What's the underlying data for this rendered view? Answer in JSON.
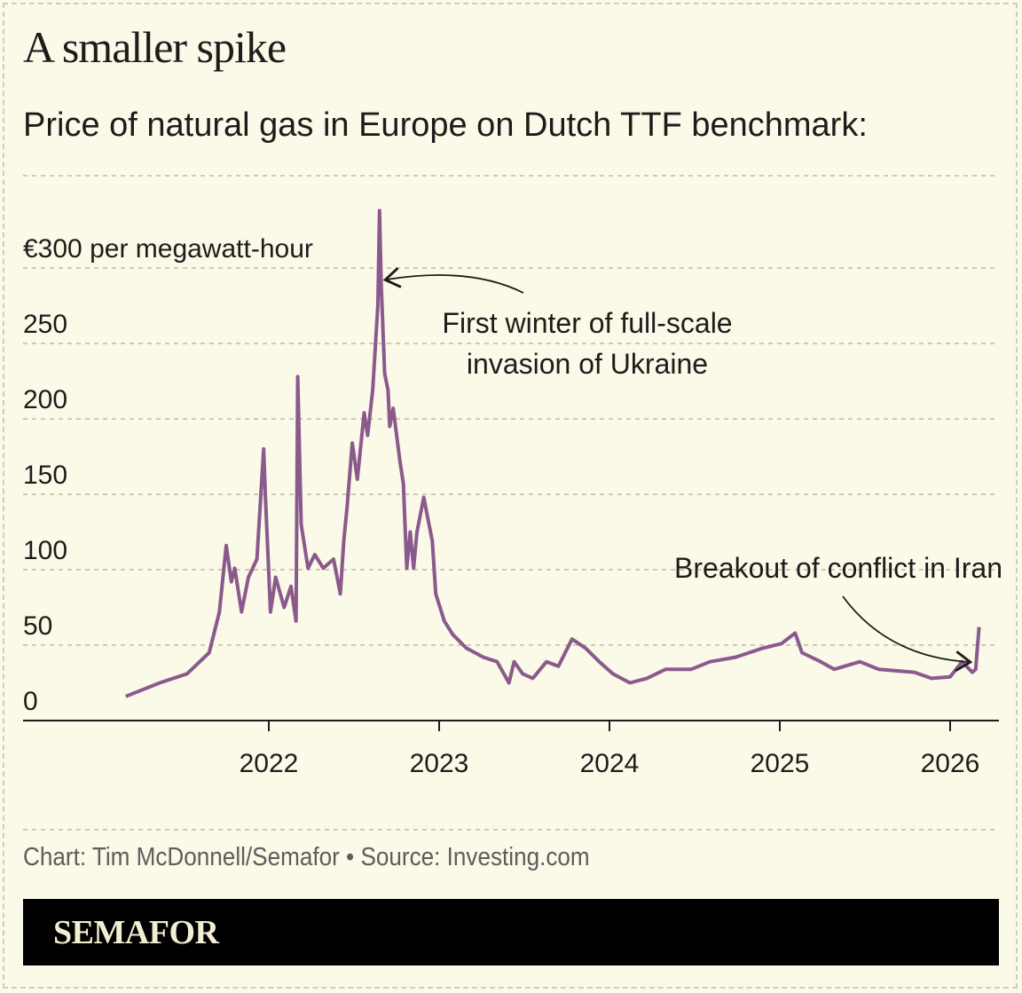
{
  "title": "A smaller spike",
  "subtitle": "Price of natural gas in Europe on Dutch TTF benchmark:",
  "credit": "Chart: Tim McDonnell/Semafor • Source: Investing.com",
  "brand": "SEMAFOR",
  "colors": {
    "line": "#8a5a8c",
    "background": "#fbf9e7",
    "grid": "#bdbbaa",
    "brandbar": "#000000"
  },
  "chart_data": {
    "type": "line",
    "ylabel_inline": "€300 per megawatt-hour",
    "ylim": [
      0,
      360
    ],
    "xlim": [
      2021.0,
      2026.3
    ],
    "grid": true,
    "y_ticks": [
      0,
      50,
      100,
      150,
      200,
      250,
      300
    ],
    "y_tick_labels": [
      "0",
      "50",
      "100",
      "150",
      "200",
      "250",
      "€300 per megawatt-hour"
    ],
    "x_ticks": [
      2022,
      2023,
      2024,
      2025,
      2026
    ],
    "x_tick_labels": [
      "2022",
      "2023",
      "2024",
      "2025",
      "2026"
    ],
    "annotations": [
      {
        "text_lines": [
          "First winter of full-scale",
          "invasion of Ukraine"
        ],
        "x": 2022.65,
        "y": 290
      },
      {
        "text_lines": [
          "Breakout of conflict in Iran"
        ],
        "x": 2026.14,
        "y": 38
      }
    ],
    "series": [
      {
        "x": [
          2021.16,
          2021.36,
          2021.52,
          2021.65,
          2021.71,
          2021.75,
          2021.78,
          2021.8,
          2021.84,
          2021.88,
          2021.93,
          2021.97,
          2021.98,
          2022.01,
          2022.04,
          2022.09,
          2022.13,
          2022.16,
          2022.17,
          2022.19,
          2022.23,
          2022.27,
          2022.32,
          2022.38,
          2022.42,
          2022.44,
          2022.46,
          2022.49,
          2022.52,
          2022.56,
          2022.58,
          2022.61,
          2022.64,
          2022.65,
          2022.66,
          2022.68,
          2022.7,
          2022.71,
          2022.73,
          2022.77,
          2022.79,
          2022.81,
          2022.83,
          2022.85,
          2022.87,
          2022.91,
          2022.93,
          2022.96,
          2022.98,
          2023.03,
          2023.08,
          2023.16,
          2023.26,
          2023.34,
          2023.41,
          2023.44,
          2023.49,
          2023.55,
          2023.63,
          2023.7,
          2023.78,
          2023.86,
          2023.94,
          2024.02,
          2024.12,
          2024.22,
          2024.33,
          2024.48,
          2024.59,
          2024.74,
          2024.9,
          2025.01,
          2025.09,
          2025.13,
          2025.24,
          2025.32,
          2025.47,
          2025.58,
          2025.79,
          2025.89,
          2026.0,
          2026.07,
          2026.13,
          2026.15,
          2026.17
        ],
        "values": [
          16,
          25,
          31,
          45,
          72,
          116,
          92,
          101,
          72,
          95,
          107,
          180,
          148,
          72,
          95,
          75,
          89,
          66,
          228,
          130,
          101,
          110,
          101,
          107,
          84,
          119,
          142,
          184,
          160,
          204,
          189,
          219,
          275,
          338,
          289,
          230,
          219,
          195,
          207,
          172,
          157,
          101,
          125,
          101,
          125,
          148,
          136,
          119,
          84,
          66,
          57,
          48,
          42,
          39,
          25,
          39,
          31,
          28,
          39,
          36,
          54,
          48,
          39,
          31,
          25,
          28,
          34,
          34,
          39,
          42,
          48,
          51,
          58,
          45,
          39,
          34,
          39,
          34,
          32,
          28,
          29,
          39,
          32,
          34,
          62
        ]
      }
    ]
  }
}
